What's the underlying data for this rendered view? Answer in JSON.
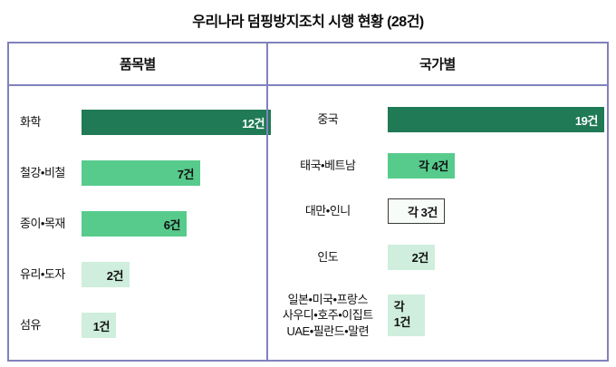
{
  "title": "우리나라 덤핑방지조치 시행 현황 (28건)",
  "colors": {
    "bar_dark": "#1f7a55",
    "bar_medium": "#57cb8c",
    "bar_light": "#cfeedd",
    "bar_white": "#f7fcf9",
    "table_border": "#8181bd",
    "value_on_dark": "#ffffff",
    "text": "#111111"
  },
  "chart_data": [
    {
      "type": "bar",
      "orientation": "horizontal",
      "title": "품목별",
      "categories": [
        "화학",
        "철강•비철",
        "종이•목재",
        "유리•도자",
        "섬유"
      ],
      "values": [
        12,
        7,
        6,
        2,
        1
      ],
      "value_labels": [
        "12건",
        "7건",
        "6건",
        "2건",
        "1건"
      ],
      "bar_styles": [
        "dark",
        "medium",
        "medium",
        "light",
        "light"
      ],
      "xlim": [
        0,
        13
      ],
      "grid": false,
      "legend": false
    },
    {
      "type": "bar",
      "orientation": "horizontal",
      "title": "국가별",
      "categories": [
        "중국",
        "태국•베트남",
        "대만•인니",
        "인도",
        "일본•미국•프랑스\n사우디•호주•이집트\nUAE•필란드•말련"
      ],
      "values": [
        19,
        4,
        3,
        2,
        1
      ],
      "value_labels": [
        "19건",
        "각 4건",
        "각 3건",
        "2건",
        "각\n1건"
      ],
      "bar_styles": [
        "dark",
        "medium",
        "white",
        "light",
        "light"
      ],
      "xlim": [
        0,
        20
      ],
      "grid": false,
      "legend": false
    }
  ]
}
